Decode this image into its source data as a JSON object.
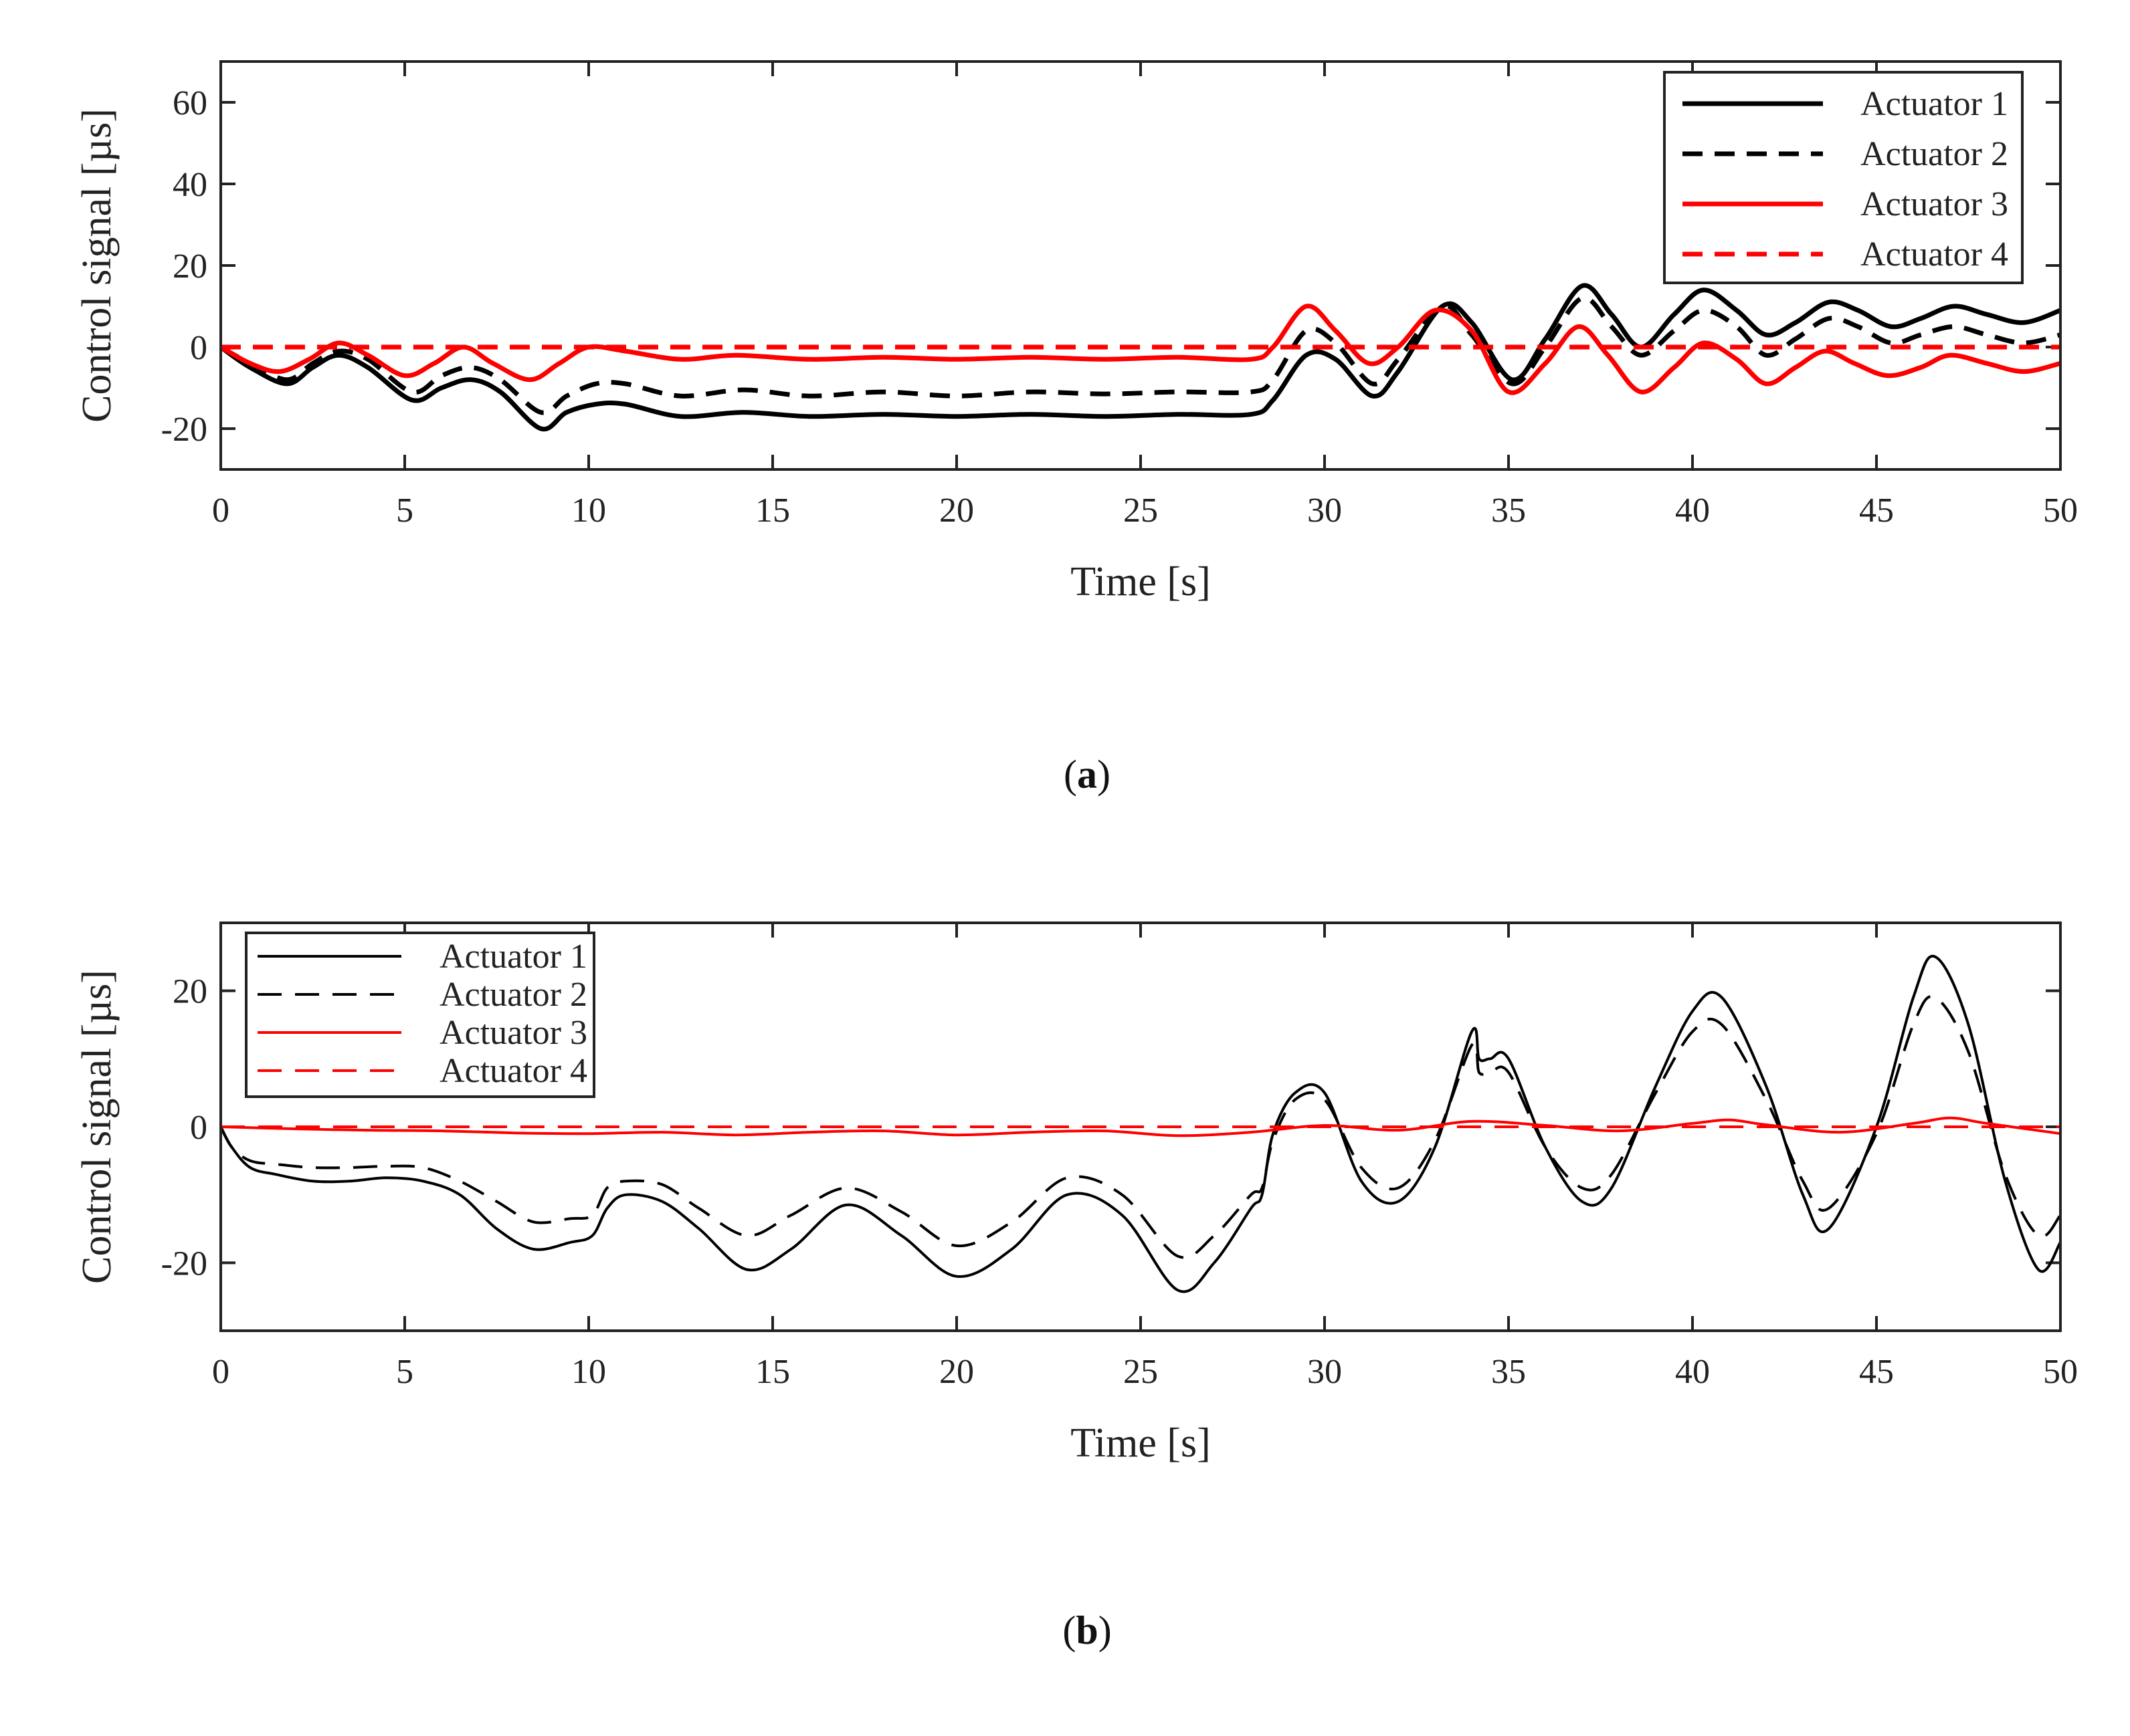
{
  "colors": {
    "actuator_1": "#000000",
    "actuator_2": "#000000",
    "actuator_3": "#ff0000",
    "actuator_4": "#ff0000",
    "axes": "#222222"
  },
  "panels": [
    {
      "caption": {
        "open": "(",
        "letter": "a",
        "close": ")"
      },
      "legend_position": "top-right"
    },
    {
      "caption": {
        "open": "(",
        "letter": "b",
        "close": ")"
      },
      "legend_position": "top-left"
    }
  ],
  "chart_data": [
    {
      "type": "line",
      "title": "",
      "xlabel": "Time [s]",
      "ylabel": "Control signal [µs]",
      "xlim": [
        0,
        50
      ],
      "ylim": [
        -30,
        70
      ],
      "xticks": [
        0,
        5,
        10,
        15,
        20,
        25,
        30,
        35,
        40,
        45,
        50
      ],
      "yticks": [
        -20,
        0,
        20,
        40,
        60
      ],
      "xtick_labels": [
        "0",
        "5",
        "10",
        "15",
        "20",
        "25",
        "30",
        "35",
        "40",
        "45",
        "50"
      ],
      "ytick_labels": [
        "-20",
        "0",
        "20",
        "40",
        "60"
      ],
      "series": [
        {
          "name": "Actuator 1",
          "style": "solid",
          "color": "#000000",
          "x": [
            0,
            0.8,
            1.8,
            2.5,
            3.2,
            4.0,
            5.2,
            6.0,
            6.8,
            7.6,
            8.7,
            9.4,
            10.2,
            11.0,
            12.5,
            14.2,
            16.0,
            18.0,
            20.0,
            22.0,
            24.0,
            26.0,
            28.0,
            28.6,
            29.5,
            30.3,
            31.3,
            32.0,
            33.2,
            34.0,
            35.1,
            36.0,
            37.0,
            37.8,
            38.6,
            39.5,
            40.3,
            41.2,
            42.0,
            42.8,
            43.7,
            44.5,
            45.4,
            46.2,
            47.1,
            48.0,
            49.0,
            50.0
          ],
          "y": [
            0,
            -5,
            -9,
            -5,
            -2,
            -5,
            -13,
            -10,
            -8,
            -11,
            -20,
            -16,
            -14,
            -14,
            -17,
            -16,
            -17,
            -16.5,
            -17,
            -16.5,
            -17,
            -16.5,
            -16.5,
            -13,
            -2,
            -3,
            -12,
            -6,
            10,
            6,
            -8,
            2,
            15,
            8,
            0,
            8,
            14,
            9,
            3,
            6,
            11,
            9,
            5,
            7,
            10,
            8,
            6,
            9
          ]
        },
        {
          "name": "Actuator 2",
          "style": "dashed",
          "color": "#000000",
          "x": [
            0,
            0.8,
            1.8,
            2.5,
            3.2,
            4.0,
            5.2,
            6.0,
            6.8,
            7.6,
            8.7,
            9.4,
            10.2,
            11.0,
            12.5,
            14.2,
            16.0,
            18.0,
            20.0,
            22.0,
            24.0,
            26.0,
            28.0,
            28.6,
            29.5,
            30.3,
            31.3,
            32.0,
            33.2,
            34.0,
            35.1,
            36.0,
            37.0,
            37.8,
            38.6,
            39.5,
            40.3,
            41.2,
            42.0,
            42.8,
            43.7,
            44.5,
            45.4,
            46.2,
            47.1,
            48.0,
            49.0,
            50.0
          ],
          "y": [
            0,
            -4,
            -8,
            -4,
            -1,
            -3,
            -11,
            -7,
            -5,
            -8,
            -16,
            -12,
            -9,
            -9,
            -12,
            -10.5,
            -12,
            -11,
            -12,
            -11,
            -11.5,
            -11,
            -11,
            -8,
            4,
            1,
            -9,
            -3,
            10,
            3,
            -9,
            0,
            12,
            5,
            -2,
            4,
            9,
            5,
            -2,
            2,
            7,
            5,
            1,
            3,
            5,
            3,
            1,
            3
          ]
        },
        {
          "name": "Actuator 3",
          "style": "solid",
          "color": "#ff0000",
          "x": [
            0,
            0.8,
            1.6,
            2.4,
            3.2,
            4.0,
            5.0,
            5.8,
            6.6,
            7.4,
            8.4,
            9.2,
            10.0,
            11.0,
            12.5,
            14.0,
            16.0,
            18.0,
            20.0,
            22.0,
            24.0,
            26.0,
            28.0,
            28.6,
            29.5,
            30.3,
            31.2,
            32.0,
            33.0,
            34.0,
            35.0,
            36.0,
            36.9,
            37.7,
            38.6,
            39.5,
            40.3,
            41.2,
            42.0,
            42.8,
            43.6,
            44.4,
            45.3,
            46.2,
            47.0,
            48.0,
            49.0,
            50.0
          ],
          "y": [
            0,
            -4,
            -6,
            -3,
            1,
            -2,
            -7,
            -4,
            0,
            -4,
            -8,
            -4,
            0,
            -1,
            -3,
            -2,
            -3,
            -2.5,
            -3,
            -2.5,
            -3,
            -2.5,
            -3,
            0,
            10,
            4,
            -4,
            0,
            9,
            4,
            -11,
            -4,
            5,
            -2,
            -11,
            -5,
            1,
            -3,
            -9,
            -5,
            -1,
            -4,
            -7,
            -5,
            -2,
            -4,
            -6,
            -4
          ]
        },
        {
          "name": "Actuator 4",
          "style": "dashed",
          "color": "#ff0000",
          "x": [
            0,
            50
          ],
          "y": [
            0,
            0
          ]
        }
      ]
    },
    {
      "type": "line",
      "title": "",
      "xlabel": "Time [s]",
      "ylabel": "Control signal [µs]",
      "xlim": [
        0,
        50
      ],
      "ylim": [
        -30,
        30
      ],
      "xticks": [
        0,
        5,
        10,
        15,
        20,
        25,
        30,
        35,
        40,
        45,
        50
      ],
      "yticks": [
        -20,
        0,
        20
      ],
      "xtick_labels": [
        "0",
        "5",
        "10",
        "15",
        "20",
        "25",
        "30",
        "35",
        "40",
        "45",
        "50"
      ],
      "ytick_labels": [
        "-20",
        "0",
        "20"
      ],
      "series": [
        {
          "name": "Actuator 1",
          "style": "solid",
          "color": "#000000",
          "x": [
            0,
            0.3,
            0.8,
            1.5,
            2.5,
            3.5,
            4.5,
            5.5,
            6.5,
            7.5,
            8.5,
            9.5,
            10.1,
            10.5,
            11.0,
            12.0,
            13.0,
            14.3,
            15.5,
            17.0,
            18.5,
            20.0,
            21.5,
            23.0,
            24.5,
            26.0,
            27.0,
            28.0,
            28.3,
            28.6,
            29.2,
            30.0,
            31.0,
            32.0,
            33.0,
            34.0,
            34.2,
            34.5,
            35.0,
            36.0,
            37.0,
            37.8,
            39.0,
            40.0,
            40.8,
            42.0,
            43.0,
            43.7,
            45.0,
            46.0,
            46.6,
            47.5,
            48.5,
            49.4,
            50.0
          ],
          "y": [
            0,
            -3,
            -6,
            -7,
            -8,
            -8,
            -7.5,
            -8,
            -10,
            -15,
            -18,
            -17,
            -16,
            -12,
            -10,
            -11,
            -15,
            -21,
            -18,
            -11.5,
            -16,
            -22,
            -18,
            -10,
            -13,
            -24,
            -20,
            -12,
            -10,
            -1,
            5,
            5,
            -8,
            -11,
            -3,
            14,
            10,
            10,
            10,
            -3,
            -11,
            -9,
            6,
            17,
            19,
            6,
            -10,
            -15,
            0,
            19,
            25,
            15,
            -8,
            -21,
            -17
          ]
        },
        {
          "name": "Actuator 2",
          "style": "dashed",
          "color": "#000000",
          "x": [
            0,
            0.3,
            0.8,
            1.5,
            2.5,
            3.5,
            4.5,
            5.5,
            6.5,
            7.5,
            8.5,
            9.5,
            10.1,
            10.5,
            11.0,
            12.0,
            13.0,
            14.3,
            15.5,
            17.0,
            18.5,
            20.0,
            21.5,
            23.0,
            24.5,
            26.0,
            27.0,
            28.0,
            28.3,
            28.6,
            29.2,
            30.0,
            31.0,
            32.0,
            33.0,
            34.0,
            34.2,
            34.5,
            35.0,
            36.0,
            37.0,
            37.8,
            39.0,
            40.0,
            40.8,
            42.0,
            43.0,
            43.7,
            45.0,
            46.0,
            46.6,
            47.5,
            48.5,
            49.4,
            50.0
          ],
          "y": [
            0,
            -3,
            -5,
            -5.5,
            -6,
            -6,
            -5.8,
            -6,
            -8,
            -11,
            -14,
            -13.5,
            -13,
            -9,
            -8,
            -8.5,
            -12,
            -16,
            -13,
            -9,
            -12.5,
            -17.5,
            -14,
            -7.5,
            -10,
            -19,
            -16,
            -10,
            -9,
            -2,
            4,
            4,
            -6,
            -9,
            -2,
            12,
            8,
            8,
            8,
            -3,
            -9,
            -7,
            5,
            14,
            15,
            4,
            -8,
            -12,
            -1,
            15,
            19,
            11,
            -7,
            -16,
            -13
          ]
        },
        {
          "name": "Actuator 3",
          "style": "solid",
          "color": "#ff0000",
          "x": [
            0,
            2,
            4,
            6,
            8,
            10,
            12,
            14,
            16,
            18,
            20,
            22,
            24,
            26,
            28,
            30,
            32,
            34,
            36,
            38,
            40,
            41,
            42,
            44,
            46,
            47,
            48,
            50
          ],
          "y": [
            0,
            -0.3,
            -0.5,
            -0.6,
            -0.9,
            -1.0,
            -0.8,
            -1.2,
            -0.8,
            -0.6,
            -1.2,
            -0.8,
            -0.6,
            -1.3,
            -0.8,
            0.2,
            -0.5,
            0.8,
            0.2,
            -0.6,
            0.5,
            1.0,
            0.3,
            -0.8,
            0.5,
            1.3,
            0.5,
            -1.0
          ]
        },
        {
          "name": "Actuator 4",
          "style": "dashed",
          "color": "#ff0000",
          "x": [
            0,
            50
          ],
          "y": [
            0,
            0
          ]
        }
      ]
    }
  ]
}
